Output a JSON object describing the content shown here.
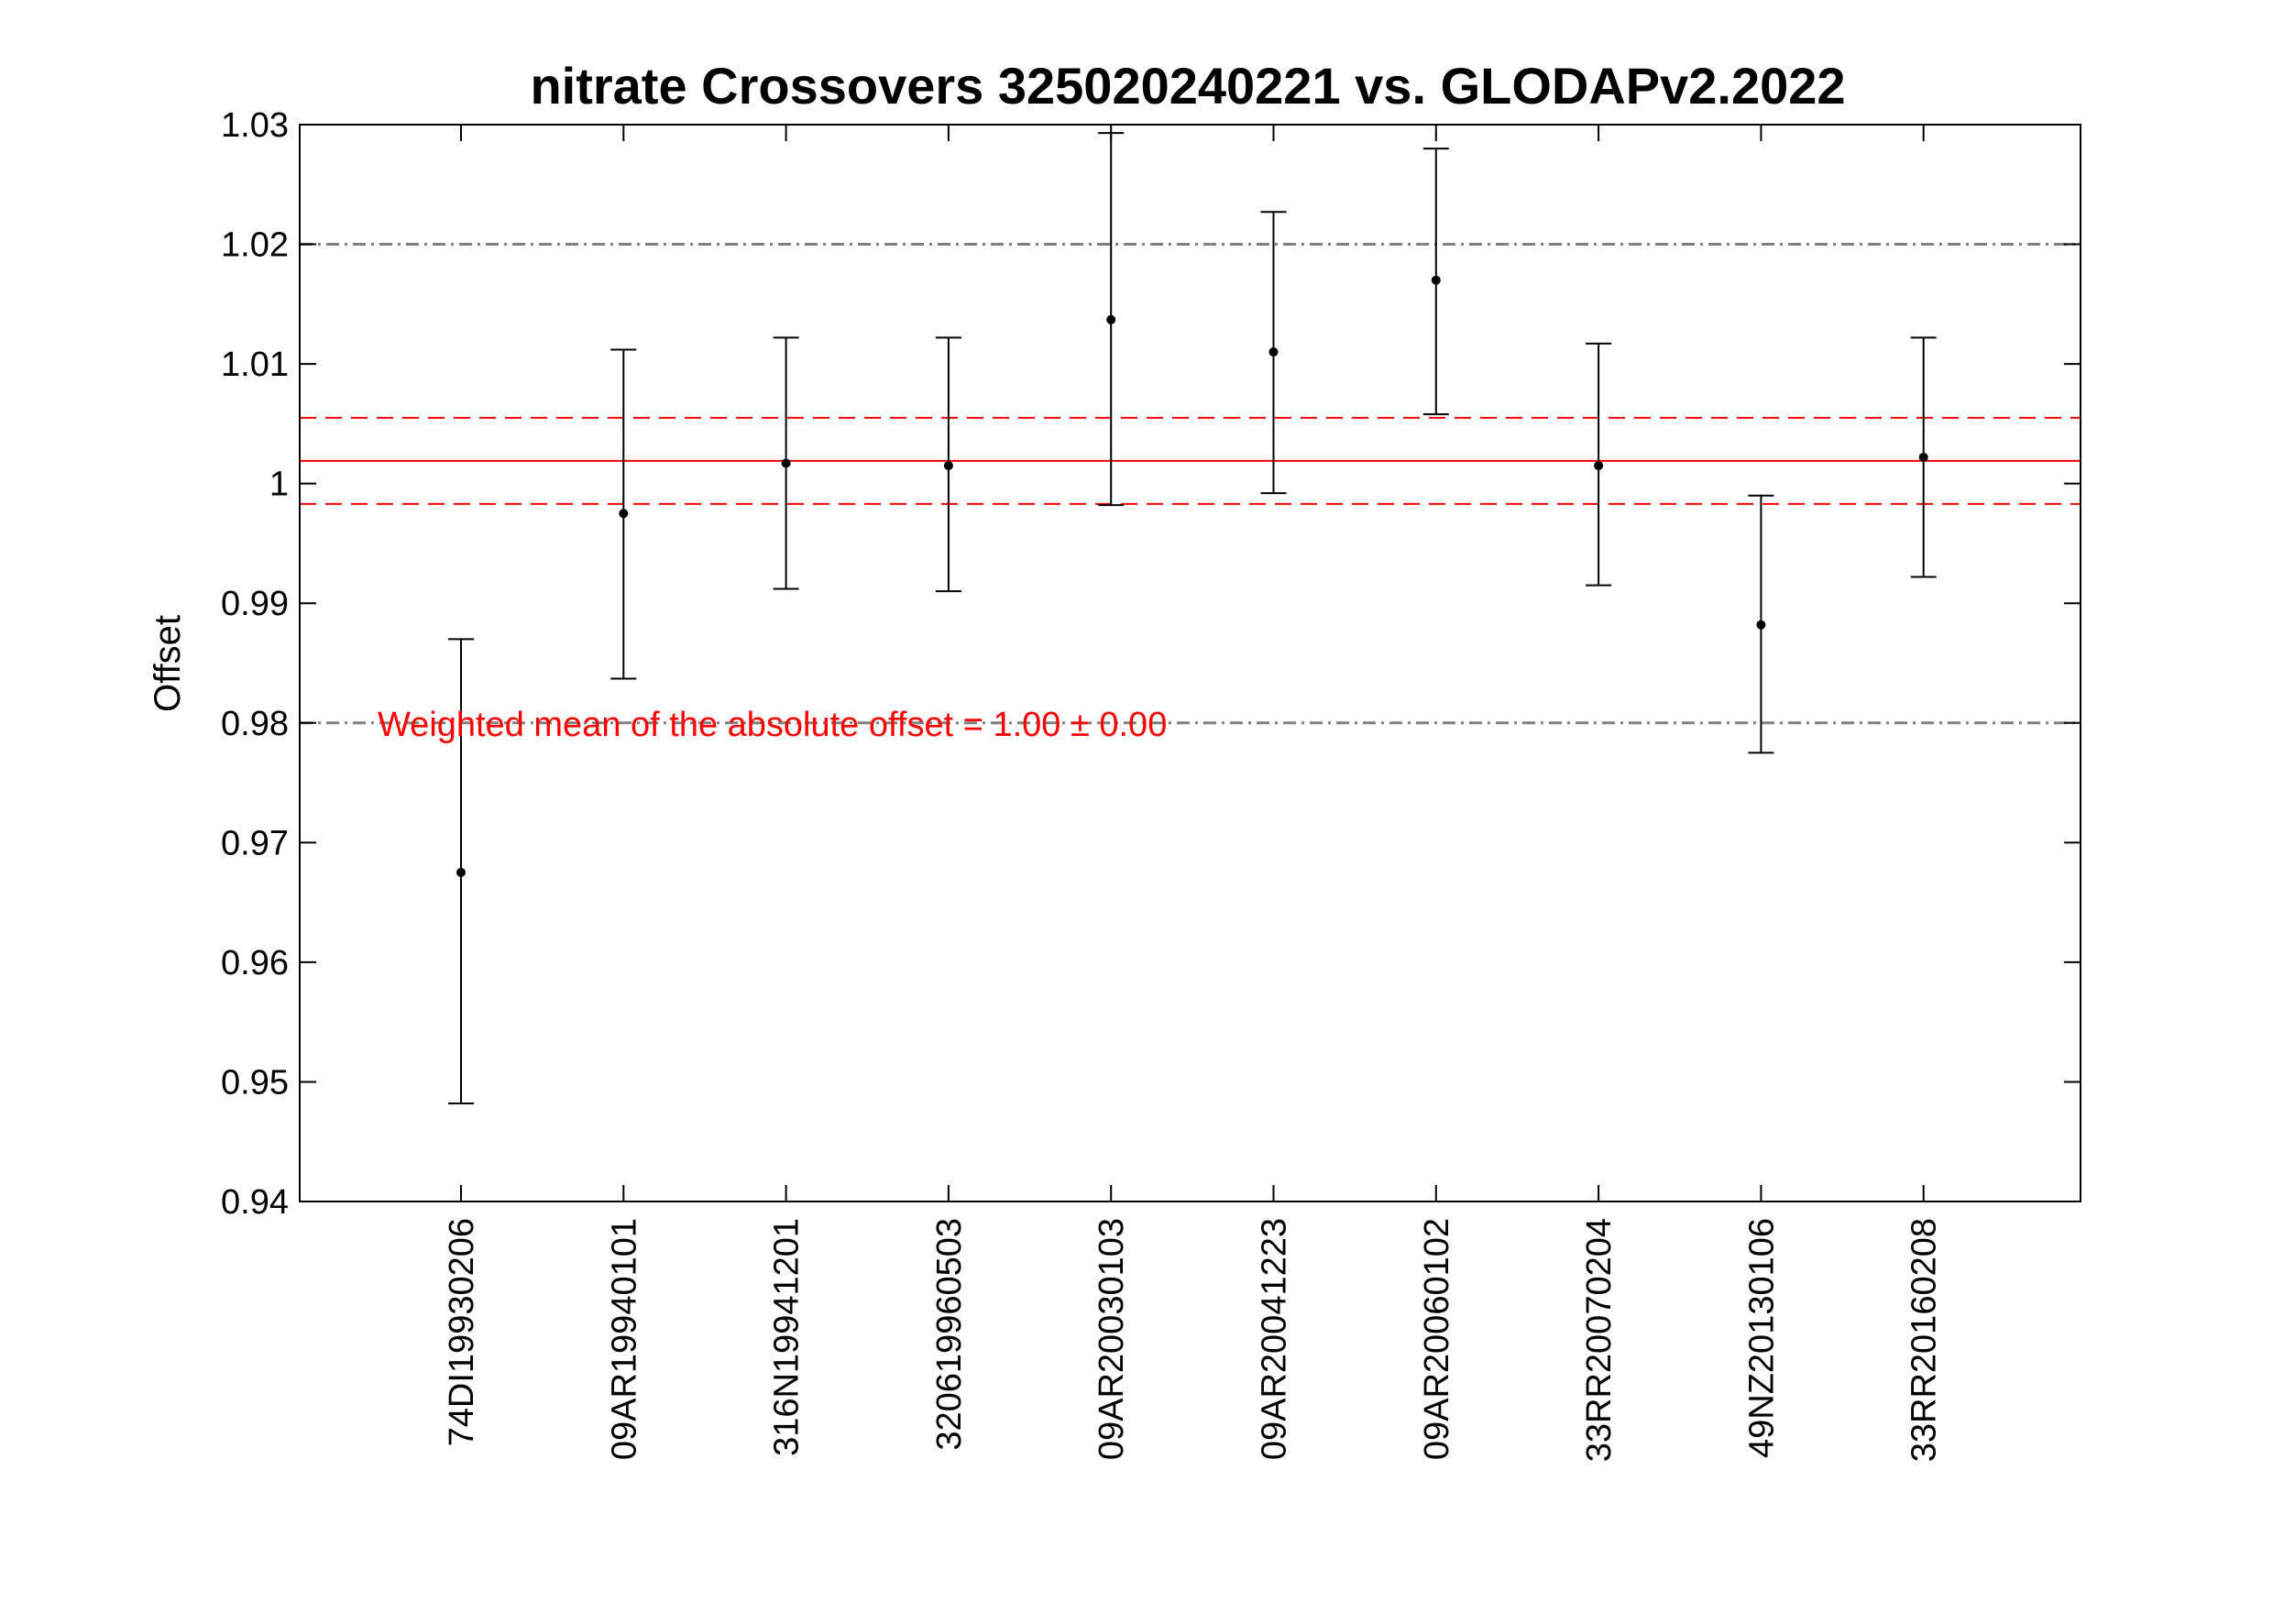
{
  "chart_data": {
    "type": "scatter",
    "title": "nitrate Crossovers 325020240221 vs. GLODAPv2.2022",
    "xlabel": "",
    "ylabel": "Offset",
    "ylim": [
      0.94,
      1.03
    ],
    "yticks": [
      "0.94",
      "0.95",
      "0.96",
      "0.97",
      "0.98",
      "0.99",
      "1",
      "1.01",
      "1.02",
      "1.03"
    ],
    "categories": [
      "74DI19930206",
      "09AR19940101",
      "316N19941201",
      "320619960503",
      "09AR20030103",
      "09AR20041223",
      "09AR20060102",
      "33RR20070204",
      "49NZ20130106",
      "33RR20160208"
    ],
    "series": [
      {
        "values": [
          0.9675,
          0.9975,
          1.0017,
          1.0015,
          1.0137,
          1.011,
          1.017,
          1.0015,
          0.9882,
          1.0022
        ],
        "lower": [
          0.9482,
          0.9837,
          0.9912,
          0.991,
          0.9982,
          0.9992,
          1.0058,
          0.9915,
          0.9775,
          0.9922
        ],
        "upper": [
          0.987,
          1.0112,
          1.0122,
          1.0122,
          1.0293,
          1.0227,
          1.028,
          1.0117,
          0.999,
          1.0122
        ]
      }
    ],
    "weighted_mean": 1.0019,
    "weighted_mean_band": [
      0.9983,
      1.0055
    ],
    "reference_lines": [
      0.98,
      1.02
    ],
    "annotation": "Weighted mean of the absolute offset = 1.00 ± 0.00",
    "grid": false,
    "legend": "none",
    "colors": {
      "points": "#000000",
      "errorbars": "#000000",
      "mean_line": "#ff0000",
      "reference_lines": "#808080"
    }
  }
}
